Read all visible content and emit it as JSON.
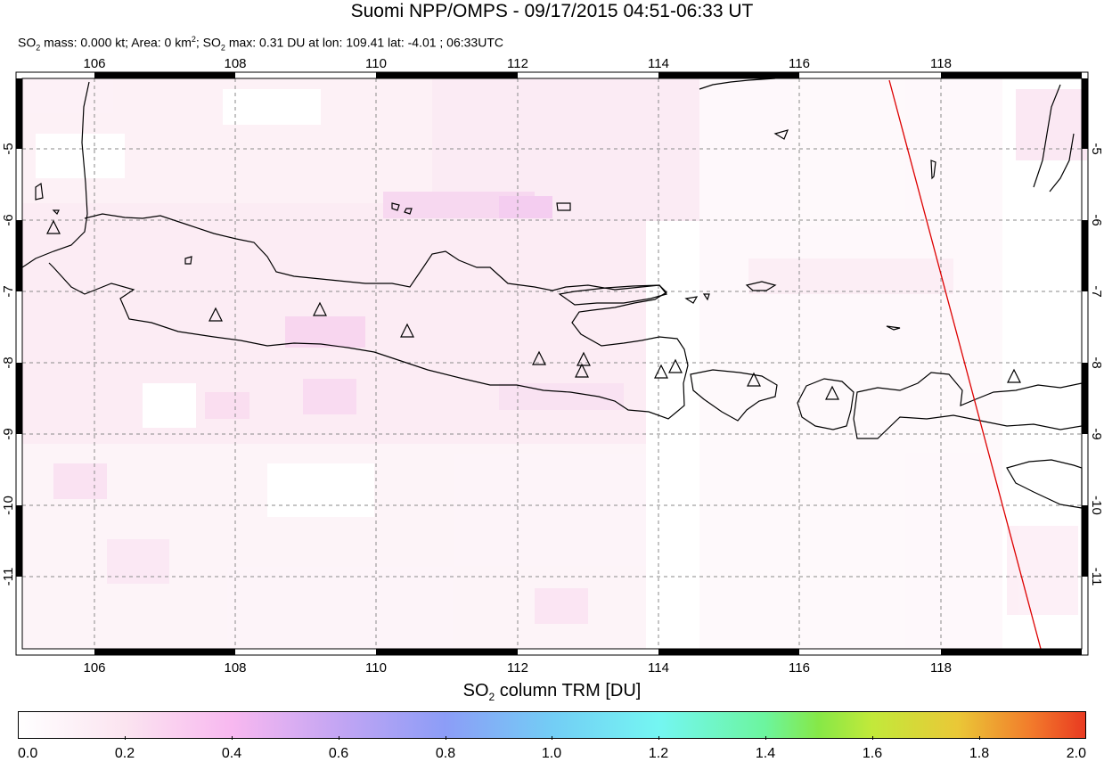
{
  "title": "Suomi NPP/OMPS - 09/17/2015 04:51-06:33 UT",
  "subtitle": {
    "p1": "SO",
    "s1": "2",
    "p2": " mass: 0.000 kt; Area: 0 km",
    "s2": "2",
    "p3": "; SO",
    "s3": "2",
    "p4": " max: 0.31 DU at lon: 109.41 lat: -4.01 ; 06:33UTC"
  },
  "map": {
    "lon_labels": [
      "106",
      "108",
      "110",
      "112",
      "114",
      "116",
      "118"
    ],
    "lat_labels": [
      "-5",
      "-6",
      "-7",
      "-8",
      "-9",
      "-10",
      "-11"
    ],
    "lon_range": [
      105,
      120
    ],
    "lat_range": [
      -12,
      -4
    ],
    "coastline_color": "#000000",
    "orbit_edge_color": "#dd0000",
    "volcano_marker": "triangle"
  },
  "colorbar": {
    "title_pre": "SO",
    "title_sub": "2",
    "title_post": " column TRM [DU]",
    "labels": [
      "0.0",
      "0.2",
      "0.4",
      "0.6",
      "0.8",
      "1.0",
      "1.2",
      "1.4",
      "1.6",
      "1.8",
      "2.0"
    ],
    "min": 0.0,
    "max": 2.0
  }
}
